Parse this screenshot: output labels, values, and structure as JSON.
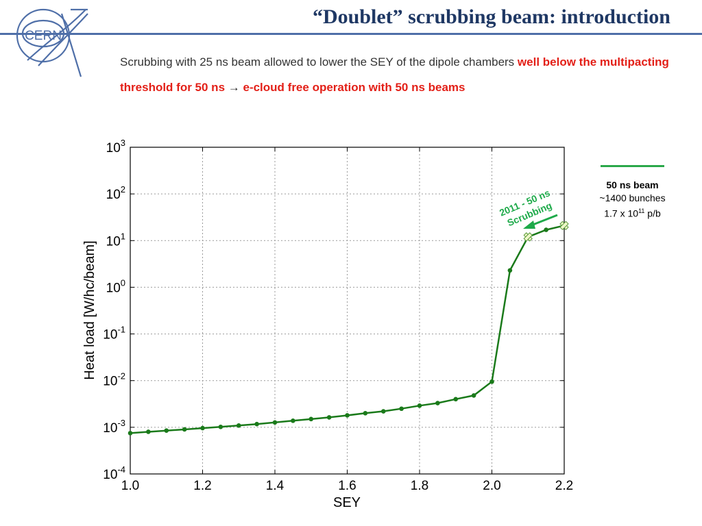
{
  "header": {
    "logo_text": "CERN",
    "title": "“Doublet” scrubbing beam: introduction"
  },
  "subtitle": {
    "part1": "Scrubbing with 25 ns beam allowed to lower the SEY of the dipole chambers ",
    "part2": "well below the multipacting threshold for 50 ns",
    "arrow": " → ",
    "part3": "e-cloud free operation with 50 ns beams"
  },
  "legend": {
    "color": "#2aa84a",
    "series": "50 ns beam",
    "line2": "~1400 bunches",
    "line3_base": "1.7 x 10",
    "line3_exp": "11",
    "line3_unit": " p/b"
  },
  "chart_data": {
    "type": "line",
    "xlabel": "SEY",
    "ylabel": "Heat load [W/hc/beam]",
    "xlim": [
      1.0,
      2.2
    ],
    "ylim_exp": [
      -4,
      3
    ],
    "yscale": "log",
    "grid": true,
    "x_ticks": [
      "1.0",
      "1.2",
      "1.4",
      "1.6",
      "1.8",
      "2.0",
      "2.2"
    ],
    "y_ticks": [
      {
        "base": "10",
        "exp": "3"
      },
      {
        "base": "10",
        "exp": "2"
      },
      {
        "base": "10",
        "exp": "1"
      },
      {
        "base": "10",
        "exp": "0"
      },
      {
        "base": "10",
        "exp": "-1"
      },
      {
        "base": "10",
        "exp": "-2"
      },
      {
        "base": "10",
        "exp": "-3"
      },
      {
        "base": "10",
        "exp": "-4"
      }
    ],
    "series_color": "#1a7a1a",
    "x": [
      1.0,
      1.05,
      1.1,
      1.15,
      1.2,
      1.25,
      1.3,
      1.35,
      1.4,
      1.45,
      1.5,
      1.55,
      1.6,
      1.65,
      1.7,
      1.75,
      1.8,
      1.85,
      1.9,
      1.95,
      2.0,
      2.05,
      2.1,
      2.15,
      2.2
    ],
    "y": [
      0.00075,
      0.0008,
      0.00085,
      0.0009,
      0.00096,
      0.00102,
      0.00109,
      0.00117,
      0.00127,
      0.00138,
      0.0015,
      0.00163,
      0.0018,
      0.002,
      0.0022,
      0.0025,
      0.0029,
      0.0033,
      0.004,
      0.0048,
      0.0095,
      2.3,
      12,
      17,
      21
    ],
    "markers_cross_x": [
      2.1,
      2.2
    ],
    "annotation": {
      "line1": "2011 - 50 ns",
      "line2": "Scrubbing",
      "color": "#1eaa4a"
    }
  }
}
